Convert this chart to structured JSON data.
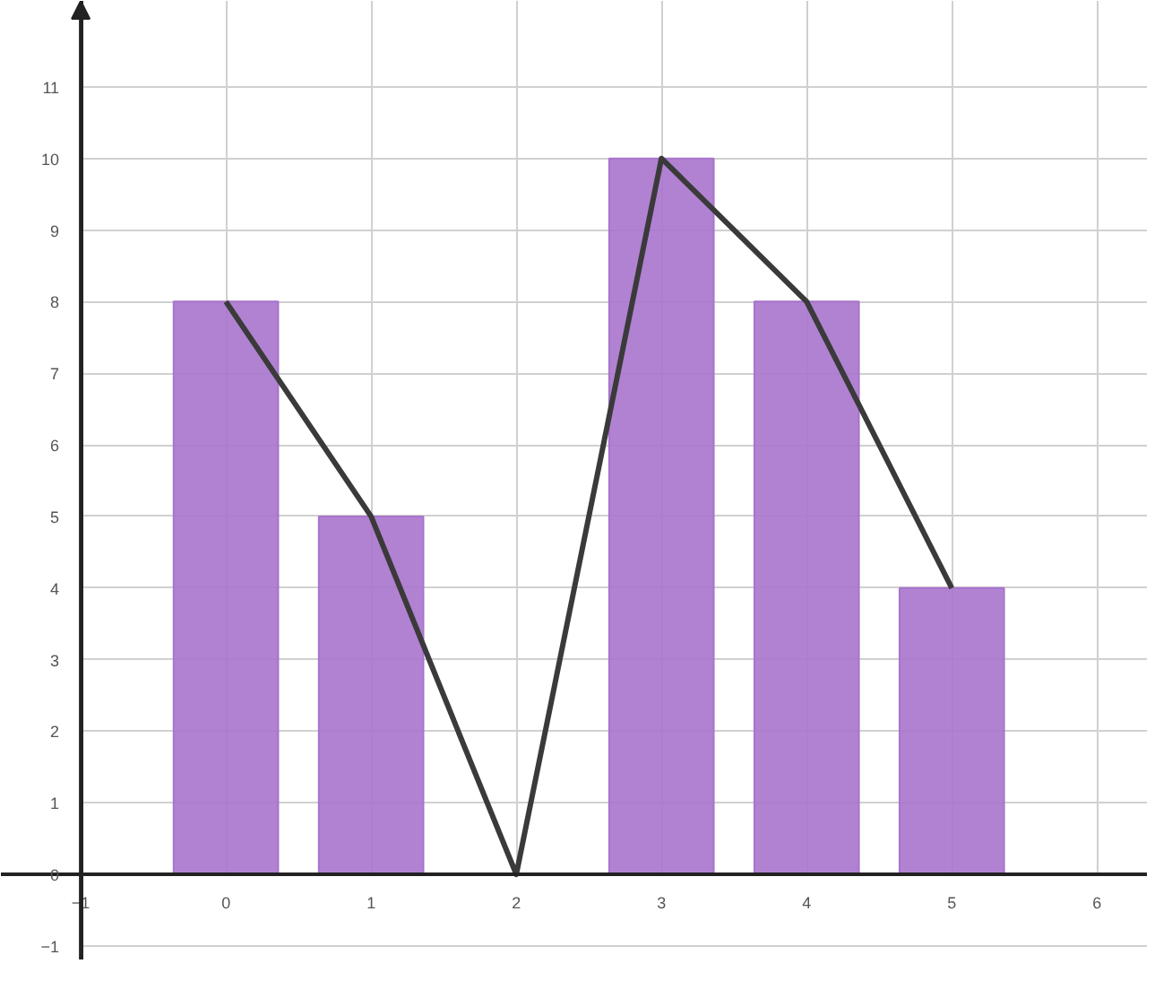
{
  "chart_data": {
    "type": "bar",
    "x": [
      0,
      1,
      2,
      3,
      4,
      5
    ],
    "series": [
      {
        "color": "#a874cc",
        "values": [
          8,
          5,
          0,
          10,
          8,
          4
        ]
      },
      {
        "type": "line",
        "color": "#3a3a3a",
        "values": [
          8,
          5,
          0,
          10,
          8,
          4
        ]
      }
    ],
    "xlim": [
      -1.55,
      6.35
    ],
    "ylim": [
      -1.2,
      12.2
    ],
    "xticks": [
      -1,
      0,
      1,
      2,
      3,
      4,
      5,
      6
    ],
    "yticks": [
      -1,
      0,
      1,
      2,
      3,
      4,
      5,
      6,
      7,
      8,
      9,
      10,
      11
    ],
    "grid": true,
    "marker": "none",
    "line_style": "solid"
  }
}
